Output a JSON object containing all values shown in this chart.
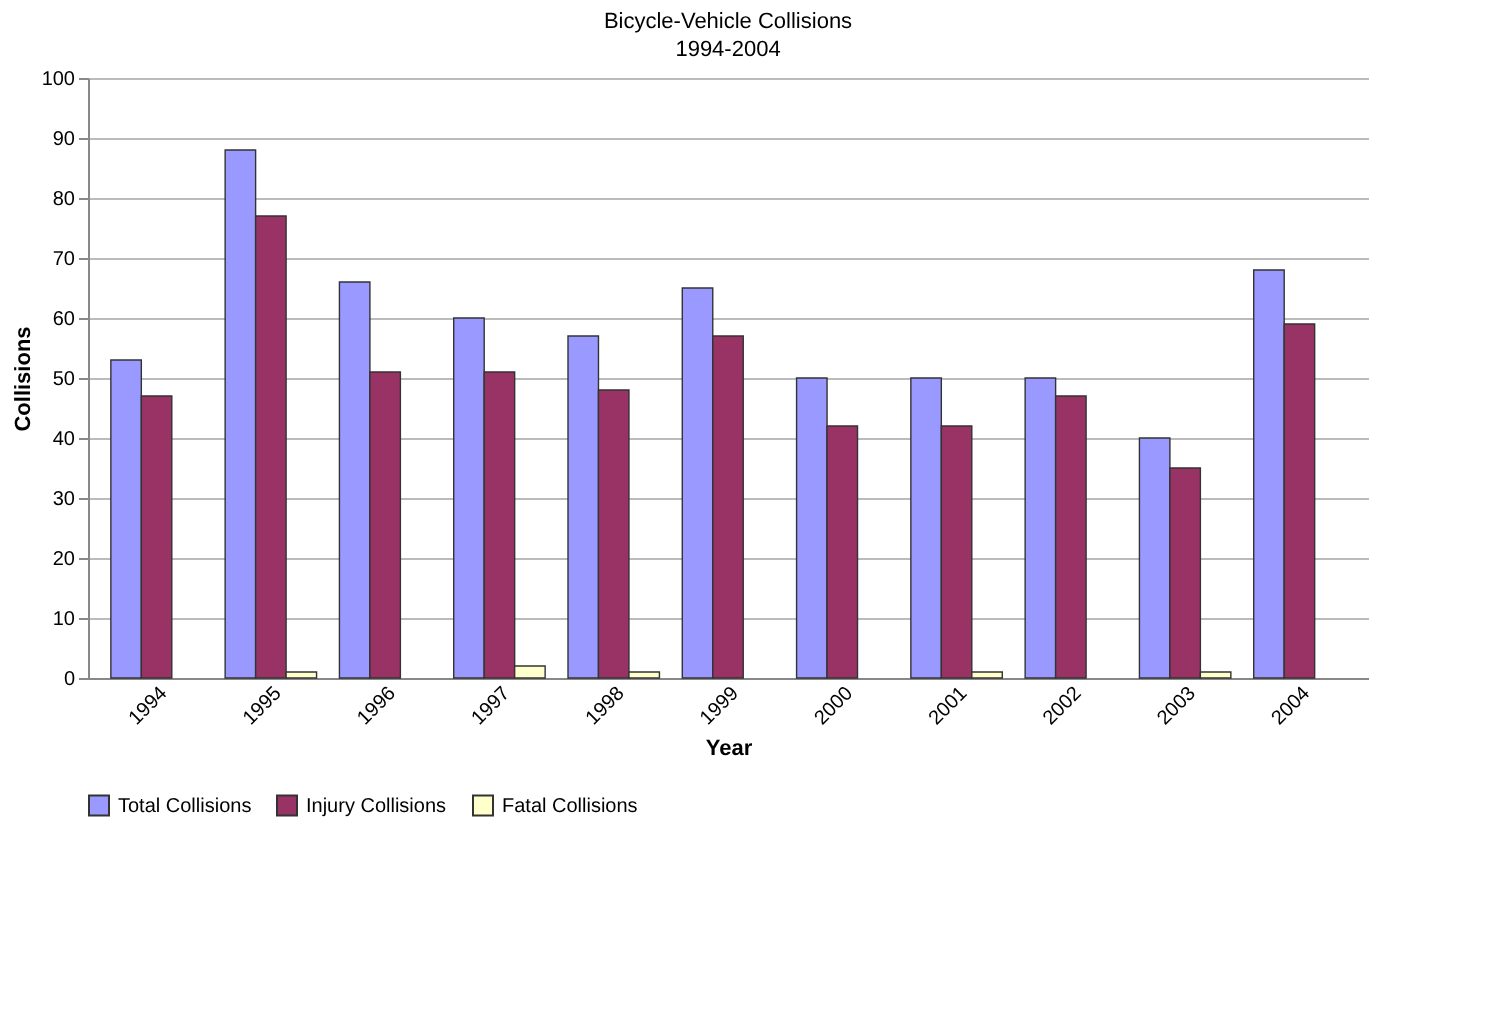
{
  "chart_data": {
    "type": "bar",
    "title": "Bicycle-Vehicle Collisions",
    "subtitle": "1994-2004",
    "xlabel": "Year",
    "ylabel": "Collisions",
    "categories": [
      "1994",
      "1995",
      "1996",
      "1997",
      "1998",
      "1999",
      "2000",
      "2001",
      "2002",
      "2003",
      "2004"
    ],
    "series": [
      {
        "name": "Total Collisions",
        "color": "#9999ff",
        "values": [
          53,
          88,
          66,
          60,
          57,
          65,
          50,
          50,
          50,
          40,
          68
        ]
      },
      {
        "name": "Injury Collisions",
        "color": "#993366",
        "values": [
          47,
          77,
          51,
          51,
          48,
          57,
          42,
          42,
          47,
          35,
          59
        ]
      },
      {
        "name": "Fatal Collisions",
        "color": "#ffffcc",
        "values": [
          0,
          1,
          0,
          2,
          1,
          0,
          0,
          1,
          0,
          1,
          0
        ]
      }
    ],
    "ylim": [
      0,
      100
    ],
    "yticks": [
      0,
      10,
      20,
      30,
      40,
      50,
      60,
      70,
      80,
      90,
      100
    ],
    "grid": "y",
    "legend": "bottom"
  }
}
